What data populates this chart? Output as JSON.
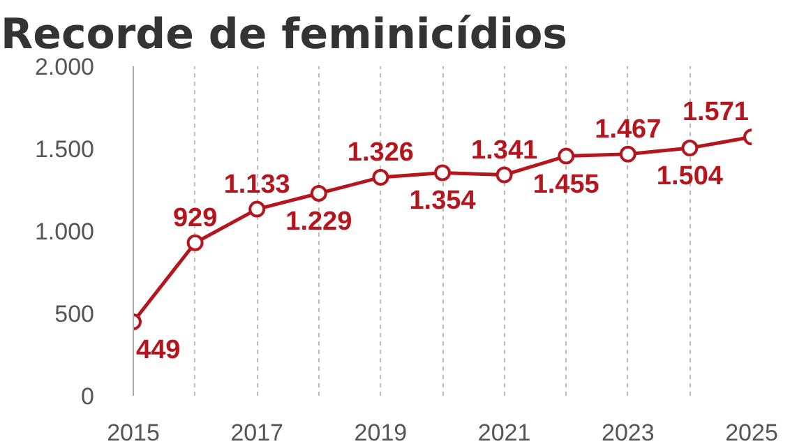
{
  "chart_data": {
    "type": "line",
    "title": "Recorde de feminicídios",
    "x": [
      2015,
      2016,
      2017,
      2018,
      2019,
      2020,
      2021,
      2022,
      2023,
      2024,
      2025
    ],
    "series": [
      {
        "color": "#b5161e",
        "values": [
          449,
          929,
          1133,
          1229,
          1326,
          1354,
          1341,
          1455,
          1467,
          1504,
          1571
        ],
        "value_labels": [
          "449",
          "929",
          "1.133",
          "1.229",
          "1.326",
          "1.354",
          "1.341",
          "1.455",
          "1.467",
          "1.504",
          "1.571"
        ]
      }
    ],
    "xlim": [
      2015,
      2025
    ],
    "xticks": [
      {
        "value": 2015,
        "label": "2015"
      },
      {
        "value": 2016,
        "label": null
      },
      {
        "value": 2017,
        "label": "2017"
      },
      {
        "value": 2018,
        "label": null
      },
      {
        "value": 2019,
        "label": "2019"
      },
      {
        "value": 2020,
        "label": null
      },
      {
        "value": 2021,
        "label": "2021"
      },
      {
        "value": 2022,
        "label": null
      },
      {
        "value": 2023,
        "label": "2023"
      },
      {
        "value": 2024,
        "label": null
      },
      {
        "value": 2025,
        "label": "2025"
      }
    ],
    "ylim": [
      0,
      2000
    ],
    "yticks": [
      0,
      500,
      {
        "value": 1000,
        "label": "1.000"
      },
      {
        "value": 1500,
        "label": "1.500"
      },
      {
        "value": 2000,
        "label": "2.000"
      }
    ],
    "grid": "x",
    "marker": "circle",
    "line_style": "solid"
  }
}
